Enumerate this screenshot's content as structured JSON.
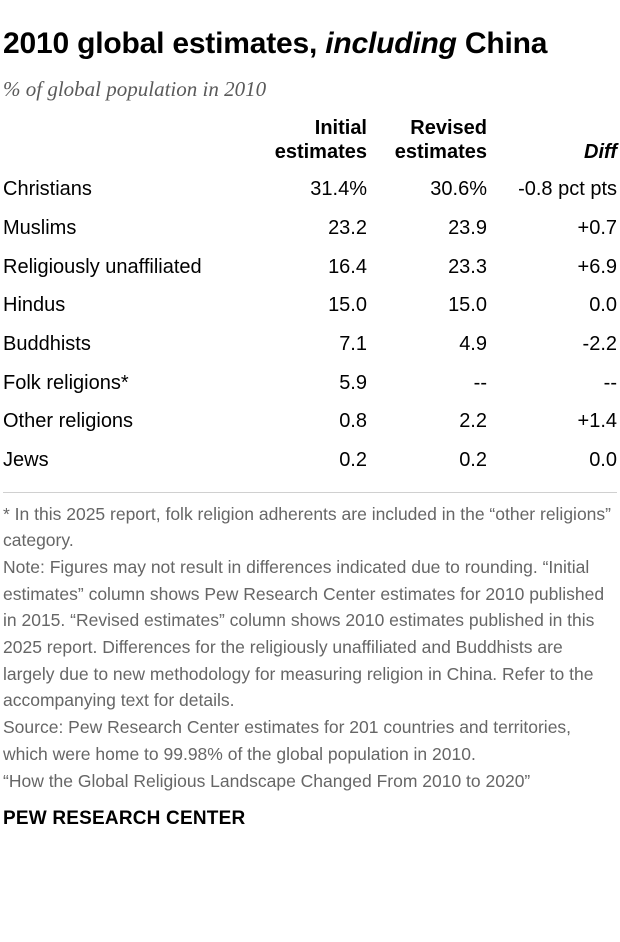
{
  "title_main": "2010 global estimates, ",
  "title_italic": "including",
  "title_end": " China",
  "subtitle": "% of global population in 2010",
  "chart_data": {
    "type": "table",
    "columns": [
      "",
      "Initial estimates",
      "Revised estimates",
      "Diff"
    ],
    "column_lines": [
      [
        "Initial",
        "estimates"
      ],
      [
        "Revised",
        "estimates"
      ],
      [
        "Diff"
      ]
    ],
    "rows": [
      {
        "category": "Christians",
        "initial": "31.4%",
        "revised": "30.6%",
        "diff": "-0.8 pct pts"
      },
      {
        "category": "Muslims",
        "initial": "23.2",
        "revised": "23.9",
        "diff": "+0.7"
      },
      {
        "category": "Religiously unaffiliated",
        "initial": "16.4",
        "revised": "23.3",
        "diff": "+6.9"
      },
      {
        "category": "Hindus",
        "initial": "15.0",
        "revised": "15.0",
        "diff": "0.0"
      },
      {
        "category": "Buddhists",
        "initial": "7.1",
        "revised": "4.9",
        "diff": "-2.2"
      },
      {
        "category": "Folk religions*",
        "initial": "5.9",
        "revised": "--",
        "diff": "--"
      },
      {
        "category": "Other religions",
        "initial": "0.8",
        "revised": "2.2",
        "diff": "+1.4"
      },
      {
        "category": "Jews",
        "initial": "0.2",
        "revised": "0.2",
        "diff": "0.0"
      }
    ]
  },
  "notes": {
    "footnote": "* In this 2025 report, folk religion adherents are included in the “other religions” category.",
    "note": "Note: Figures may not result in differences indicated due to rounding. “Initial estimates” column shows Pew Research Center estimates for 2010 published in 2015. “Revised estimates” column shows 2010 estimates published in this 2025 report. Differences for the religiously unaffiliated and Buddhists are largely due to new methodology for measuring religion in China. Refer to the accompanying text for details.",
    "source": "Source: Pew Research Center estimates for 201 countries and territories, which were home to 99.98% of the global population in 2010.",
    "report": "“How the Global Religious Landscape Changed From 2010 to 2020”"
  },
  "brand": "PEW RESEARCH CENTER"
}
